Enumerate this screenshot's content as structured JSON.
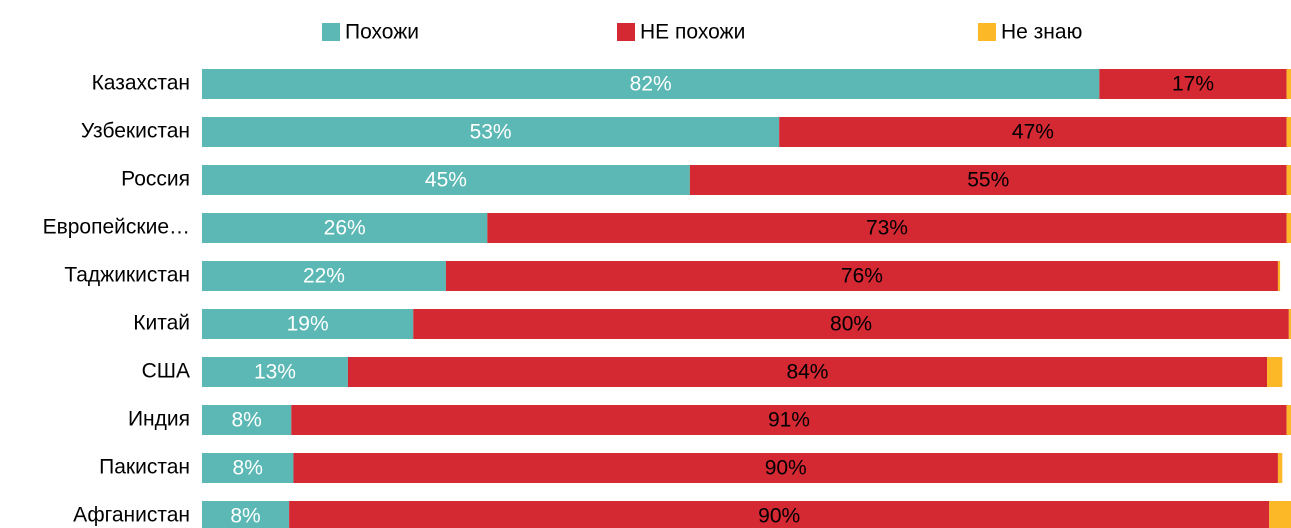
{
  "chart_data": {
    "type": "stacked-bar-horizontal",
    "categories": [
      "Казахстан",
      "Узбекистан",
      "Россия",
      "Европейские…",
      "Таджикистан",
      "Китай",
      "США",
      "Индия",
      "Пакистан",
      "Афганистан"
    ],
    "series": [
      {
        "name": "Похожи",
        "color": "#5bb8b4",
        "label_color": "#ffffff",
        "values": [
          82.4,
          53.0,
          44.8,
          26.2,
          22.4,
          19.4,
          13.4,
          8.2,
          8.4,
          8.0
        ],
        "value_labels": [
          "82%",
          "53%",
          "45%",
          "26%",
          "22%",
          "19%",
          "13%",
          "8%",
          "8%",
          "8%"
        ]
      },
      {
        "name": "НЕ похожи",
        "color": "#d42833",
        "label_color": "#000000",
        "values": [
          17.2,
          46.6,
          54.8,
          73.4,
          76.4,
          80.4,
          84.4,
          91.4,
          90.4,
          90.0
        ],
        "value_labels": [
          "17%",
          "47%",
          "55%",
          "73%",
          "76%",
          "80%",
          "84%",
          "91%",
          "90%",
          "90%"
        ]
      },
      {
        "name": "Не знаю",
        "color": "#fdb827",
        "values": [
          0.4,
          0.4,
          0.4,
          0.4,
          0.2,
          0.2,
          1.4,
          0.4,
          0.4,
          2.0
        ]
      }
    ],
    "xlim": [
      0,
      100
    ],
    "legend": "top"
  }
}
